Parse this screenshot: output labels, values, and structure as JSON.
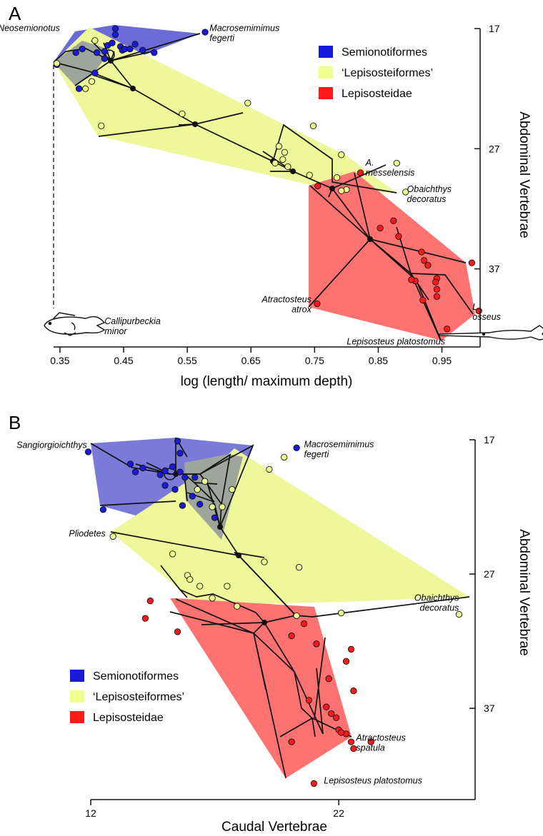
{
  "legend_labels": [
    "Semionotiformes",
    "‘Lepisosteiformes’",
    "Lepisosteidae"
  ],
  "colors": {
    "semionotiformes": "#1a1ad9",
    "lepisosteiformes": "#f1ff8f",
    "lepisosteidae": "#ff1a1a",
    "node": "#111111",
    "hull_blue": "#3a3ad6",
    "hull_yellow": "#eef79a",
    "hull_red": "#ff4d4d",
    "hull_grey": "#9ea59c"
  },
  "chart_data": [
    {
      "type": "scatter",
      "panel_label": "A",
      "xlabel": "log (length/ maximum depth)",
      "ylabel": "Abdominal Vertebrae",
      "xlim": [
        0.34,
        1.01
      ],
      "ylim": [
        17,
        43.5
      ],
      "y_inverted": true,
      "xticks": [
        0.35,
        0.45,
        0.55,
        0.65,
        0.75,
        0.85,
        0.95
      ],
      "xtick_labels": [
        "0.35",
        "0.45",
        "0.55",
        "0.65",
        "0.75",
        "0.85",
        "0.95"
      ],
      "yticks": [
        17,
        27,
        37
      ],
      "ytick_labels": [
        "17",
        "27",
        "37"
      ],
      "legend_position": "top-right",
      "annotations": [
        {
          "lines": [
            "Neosemionotus"
          ],
          "x": 0.35,
          "y": 17.2,
          "anchor": "end"
        },
        {
          "lines": [
            "Macrosemimimus",
            "fegerti"
          ],
          "x": 0.585,
          "y": 17.2,
          "anchor": "start"
        },
        {
          "lines": [
            "A.",
            "messelensis"
          ],
          "x": 0.83,
          "y": 28.4,
          "anchor": "start"
        },
        {
          "lines": [
            "Obaichthys",
            "decoratus"
          ],
          "x": 0.895,
          "y": 30.6,
          "anchor": "start"
        },
        {
          "lines": [
            "Atractosteus",
            "atrox"
          ],
          "x": 0.745,
          "y": 39.8,
          "anchor": "end"
        },
        {
          "lines": [
            "L.",
            "osseus"
          ],
          "x": 0.998,
          "y": 40.4,
          "anchor": "start"
        },
        {
          "lines": [
            "Callipurbeckia",
            "minor"
          ],
          "x": 0.42,
          "y": 41.6,
          "anchor": "start"
        },
        {
          "lines": [
            "Lepisosteus platostomus"
          ],
          "x": 0.955,
          "y": 43.3,
          "anchor": "end"
        }
      ],
      "series": [
        {
          "name": "Semionotiformes",
          "points": [
            [
              0.345,
              20.0
            ],
            [
              0.375,
              19.0
            ],
            [
              0.385,
              18.7
            ],
            [
              0.408,
              19.0
            ],
            [
              0.42,
              18.9
            ],
            [
              0.425,
              18.4
            ],
            [
              0.432,
              18.2
            ],
            [
              0.437,
              17.5
            ],
            [
              0.445,
              18.5
            ],
            [
              0.448,
              18.8
            ],
            [
              0.452,
              18.7
            ],
            [
              0.46,
              18.7
            ],
            [
              0.468,
              18.3
            ],
            [
              0.48,
              18.8
            ],
            [
              0.498,
              19.0
            ],
            [
              0.405,
              20.7
            ],
            [
              0.42,
              19.5
            ],
            [
              0.38,
              22.0
            ],
            [
              0.578,
              17.3
            ],
            [
              0.437,
              17.0
            ]
          ]
        },
        {
          "name": "‘Lepisosteiformes’",
          "points": [
            [
              0.345,
              19.9
            ],
            [
              0.405,
              18.0
            ],
            [
              0.4,
              21.4
            ],
            [
              0.39,
              22.0
            ],
            [
              0.415,
              25.1
            ],
            [
              0.542,
              24.1
            ],
            [
              0.645,
              23.2
            ],
            [
              0.694,
              26.8
            ],
            [
              0.703,
              27.3
            ],
            [
              0.688,
              28.2
            ],
            [
              0.7,
              27.9
            ],
            [
              0.708,
              28.5
            ],
            [
              0.742,
              29.2
            ],
            [
              0.748,
              25.1
            ],
            [
              0.792,
              27.5
            ],
            [
              0.785,
              29.4
            ],
            [
              0.8,
              30.4
            ],
            [
              0.879,
              28.2
            ],
            [
              0.893,
              30.6
            ],
            [
              0.792,
              30.5
            ]
          ]
        },
        {
          "name": "Lepisosteidae",
          "points": [
            [
              0.755,
              30.1
            ],
            [
              0.822,
              29.0
            ],
            [
              0.853,
              33.6
            ],
            [
              0.874,
              33.0
            ],
            [
              0.882,
              34.3
            ],
            [
              0.918,
              35.6
            ],
            [
              0.922,
              36.3
            ],
            [
              0.928,
              36.7
            ],
            [
              0.942,
              37.8
            ],
            [
              0.94,
              38.1
            ],
            [
              0.942,
              38.7
            ],
            [
              0.908,
              38.0
            ],
            [
              0.902,
              37.9
            ],
            [
              0.942,
              39.3
            ],
            [
              0.92,
              39.6
            ],
            [
              0.997,
              36.5
            ],
            [
              1.008,
              40.5
            ],
            [
              0.754,
              39.9
            ],
            [
              0.958,
              42.0
            ]
          ]
        }
      ]
    },
    {
      "type": "scatter",
      "panel_label": "B",
      "xlabel": "Caudal Vertebrae",
      "ylabel": "Abdominal Vertebrae",
      "xlim": [
        12,
        27.5
      ],
      "ylim": [
        17,
        43.8
      ],
      "y_inverted": true,
      "xticks": [
        12,
        22
      ],
      "xtick_labels": [
        "12",
        "22"
      ],
      "yticks": [
        17,
        27,
        37
      ],
      "ytick_labels": [
        "17",
        "27",
        "37"
      ],
      "legend_position": "bottom-left",
      "annotations": [
        {
          "lines": [
            "Sangiorgioichthys"
          ],
          "x": 11.85,
          "y": 17.6,
          "anchor": "end"
        },
        {
          "lines": [
            "Macrosemimimus",
            "fegerti"
          ],
          "x": 20.6,
          "y": 17.55,
          "anchor": "start"
        },
        {
          "lines": [
            "Pliodetes"
          ],
          "x": 12.6,
          "y": 24.2,
          "anchor": "end"
        },
        {
          "lines": [
            "Obaichthys",
            "decoratus"
          ],
          "x": 26.85,
          "y": 29.0,
          "anchor": "end"
        },
        {
          "lines": [
            "Atractosteus",
            "spatula"
          ],
          "x": 22.7,
          "y": 39.4,
          "anchor": "start"
        },
        {
          "lines": [
            "Lepisosteus platostomus"
          ],
          "x": 21.4,
          "y": 42.6,
          "anchor": "start"
        }
      ],
      "series": [
        {
          "name": "Semionotiformes",
          "points": [
            [
              11.9,
              17.9
            ],
            [
              15.5,
              17.1
            ],
            [
              15.6,
              18.0
            ],
            [
              20.3,
              17.6
            ],
            [
              13.6,
              18.8
            ],
            [
              14.1,
              19.1
            ],
            [
              13.8,
              19.4
            ],
            [
              15.0,
              19.3
            ],
            [
              15.3,
              19.0
            ],
            [
              15.6,
              19.4
            ],
            [
              15.8,
              19.8
            ],
            [
              16.2,
              19.8
            ],
            [
              14.8,
              19.6
            ],
            [
              15.0,
              20.4
            ],
            [
              15.4,
              20.7
            ],
            [
              16.1,
              21.2
            ],
            [
              16.4,
              21.8
            ],
            [
              17.0,
              22.8
            ],
            [
              12.5,
              22.2
            ],
            [
              15.7,
              21.9
            ]
          ]
        },
        {
          "name": "‘Lepisosteiformes’",
          "points": [
            [
              19.8,
              18.3
            ],
            [
              19.2,
              19.2
            ],
            [
              16.6,
              20.1
            ],
            [
              17.7,
              20.7
            ],
            [
              16.3,
              20.7
            ],
            [
              16.9,
              22.0
            ],
            [
              17.3,
              22.0
            ],
            [
              12.9,
              24.2
            ],
            [
              15.3,
              25.5
            ],
            [
              19.0,
              26.1
            ],
            [
              20.4,
              26.5
            ],
            [
              15.9,
              27.1
            ],
            [
              16.0,
              27.4
            ],
            [
              16.4,
              27.9
            ],
            [
              17.5,
              27.9
            ],
            [
              16.9,
              28.8
            ],
            [
              17.9,
              29.4
            ],
            [
              20.3,
              30.1
            ],
            [
              22.1,
              29.9
            ],
            [
              26.85,
              30.0
            ]
          ]
        },
        {
          "name": "Lepisosteidae",
          "points": [
            [
              14.4,
              29.0
            ],
            [
              14.2,
              30.3
            ],
            [
              15.5,
              31.3
            ],
            [
              20.1,
              31.6
            ],
            [
              20.6,
              30.7
            ],
            [
              21.1,
              32.2
            ],
            [
              22.5,
              32.6
            ],
            [
              22.3,
              33.5
            ],
            [
              21.6,
              34.8
            ],
            [
              22.6,
              35.7
            ],
            [
              20.8,
              36.4
            ],
            [
              21.5,
              36.9
            ],
            [
              21.7,
              37.4
            ],
            [
              21.9,
              37.7
            ],
            [
              22.0,
              38.6
            ],
            [
              22.3,
              38.9
            ],
            [
              22.1,
              38.8
            ],
            [
              22.5,
              39.5
            ],
            [
              22.6,
              40.0
            ],
            [
              23.3,
              39.5
            ],
            [
              20.1,
              39.5
            ],
            [
              21.0,
              42.6
            ]
          ]
        }
      ]
    }
  ]
}
